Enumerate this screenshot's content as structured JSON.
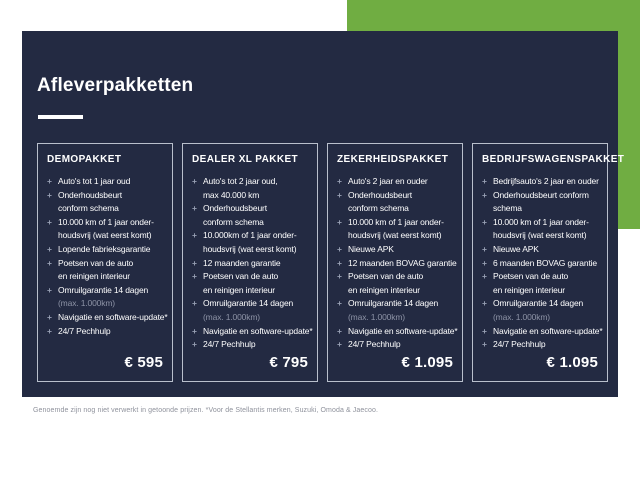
{
  "title": "Afleverpakketten",
  "footnote": "Genoemde zijn nog niet verwerkt in getoonde prijzen. *Voor de Stellantis merken, Suzuki, Omoda & Jaecoo.",
  "colors": {
    "accent_green": "#70ad42",
    "panel_navy": "#232a42",
    "card_border": "#b9bfcc",
    "text_white": "#ffffff",
    "dim_text": "#8d93a6",
    "plus_color": "#98a0b4",
    "footnote_gray": "#8f929c"
  },
  "packages": [
    {
      "name": "DEMOPAKKET",
      "price": "€ 595",
      "lines": [
        {
          "text": "Auto's tot 1 jaar oud",
          "bullet": true
        },
        {
          "text": "Onderhoudsbeurt",
          "bullet": true
        },
        {
          "text": "conform schema",
          "bullet": false
        },
        {
          "text": "10.000 km of 1 jaar onder-",
          "bullet": true
        },
        {
          "text": "houdsvrij (wat eerst komt)",
          "bullet": false
        },
        {
          "text": "Lopende fabrieksgarantie",
          "bullet": true
        },
        {
          "text": "Poetsen van de auto",
          "bullet": true
        },
        {
          "text": "en reinigen interieur",
          "bullet": false
        },
        {
          "text": "Omruilgarantie 14 dagen",
          "bullet": true
        },
        {
          "text": "(max. 1.000km)",
          "bullet": false,
          "dim": true
        },
        {
          "text": "Navigatie en software-update*",
          "bullet": true
        },
        {
          "text": "24/7 Pechhulp",
          "bullet": true
        }
      ]
    },
    {
      "name": "DEALER XL PAKKET",
      "price": "€ 795",
      "lines": [
        {
          "text": "Auto's tot 2 jaar oud,",
          "bullet": true
        },
        {
          "text": "max 40.000 km",
          "bullet": false
        },
        {
          "text": "Onderhoudsbeurt",
          "bullet": true
        },
        {
          "text": "conform schema",
          "bullet": false
        },
        {
          "text": "10.000km of 1 jaar onder-",
          "bullet": true
        },
        {
          "text": "houdsvrij (wat eerst komt)",
          "bullet": false
        },
        {
          "text": "12 maanden garantie",
          "bullet": true
        },
        {
          "text": "Poetsen van de auto",
          "bullet": true
        },
        {
          "text": "en reinigen interieur",
          "bullet": false
        },
        {
          "text": "Omruilgarantie 14 dagen",
          "bullet": true
        },
        {
          "text": "(max. 1.000km)",
          "bullet": false,
          "dim": true
        },
        {
          "text": "Navigatie en software-update*",
          "bullet": true
        },
        {
          "text": "24/7 Pechhulp",
          "bullet": true
        }
      ]
    },
    {
      "name": "ZEKERHEIDSPAKKET",
      "price": "€ 1.095",
      "lines": [
        {
          "text": "Auto's 2 jaar en ouder",
          "bullet": true
        },
        {
          "text": "Onderhoudsbeurt",
          "bullet": true
        },
        {
          "text": "conform schema",
          "bullet": false
        },
        {
          "text": "10.000 km of 1 jaar onder-",
          "bullet": true
        },
        {
          "text": "houdsvrij (wat eerst komt)",
          "bullet": false
        },
        {
          "text": "Nieuwe APK",
          "bullet": true
        },
        {
          "text": "12 maanden BOVAG garantie",
          "bullet": true
        },
        {
          "text": "Poetsen van de auto",
          "bullet": true
        },
        {
          "text": "en reinigen interieur",
          "bullet": false
        },
        {
          "text": "Omruilgarantie 14 dagen",
          "bullet": true
        },
        {
          "text": "(max. 1.000km)",
          "bullet": false,
          "dim": true
        },
        {
          "text": "Navigatie en software-update*",
          "bullet": true
        },
        {
          "text": "24/7 Pechhulp",
          "bullet": true
        }
      ]
    },
    {
      "name": "BEDRIJFSWAGENSPAKKET",
      "price": "€ 1.095",
      "lines": [
        {
          "text": "Bedrijfsauto's 2 jaar en ouder",
          "bullet": true
        },
        {
          "text": "Onderhoudsbeurt conform",
          "bullet": true
        },
        {
          "text": "schema",
          "bullet": false
        },
        {
          "text": "10.000 km of 1 jaar onder-",
          "bullet": true
        },
        {
          "text": "houdsvrij (wat eerst komt)",
          "bullet": false
        },
        {
          "text": "Nieuwe APK",
          "bullet": true
        },
        {
          "text": "6 maanden BOVAG garantie",
          "bullet": true
        },
        {
          "text": "Poetsen van de auto",
          "bullet": true
        },
        {
          "text": "en reinigen interieur",
          "bullet": false
        },
        {
          "text": "Omruilgarantie 14 dagen",
          "bullet": true
        },
        {
          "text": "(max. 1.000km)",
          "bullet": false,
          "dim": true
        },
        {
          "text": "Navigatie en software-update*",
          "bullet": true
        },
        {
          "text": "24/7 Pechhulp",
          "bullet": true
        }
      ]
    }
  ]
}
